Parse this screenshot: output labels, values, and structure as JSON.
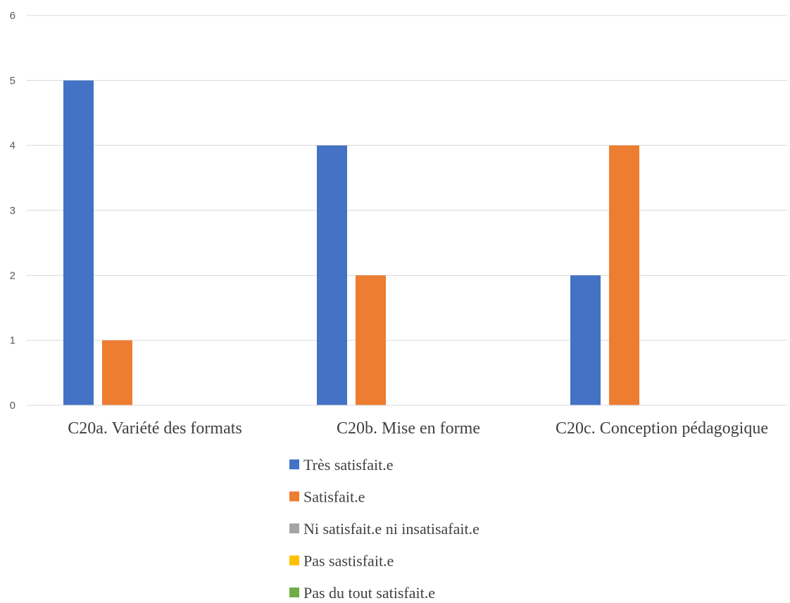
{
  "chart_data": {
    "type": "bar",
    "categories": [
      "C20a. Variété des formats",
      "C20b. Mise en forme",
      "C20c. Conception pédagogique"
    ],
    "series": [
      {
        "name": "Très satisfait.e",
        "color": "#4472C4",
        "values": [
          5,
          4,
          2
        ]
      },
      {
        "name": "Satisfait.e",
        "color": "#ED7D31",
        "values": [
          1,
          2,
          4
        ]
      },
      {
        "name": "Ni satisfait.e ni insatisafait.e",
        "color": "#A5A5A5",
        "values": [
          0,
          0,
          0
        ]
      },
      {
        "name": "Pas sastisfait.e",
        "color": "#FFC000",
        "values": [
          0,
          0,
          0
        ]
      },
      {
        "name": "Pas du tout satisfait.e",
        "color": "#70AD47",
        "values": [
          0,
          0,
          0
        ]
      }
    ],
    "ylim": [
      0,
      6
    ],
    "yticks": [
      "0",
      "1",
      "2",
      "3",
      "4",
      "5",
      "6"
    ],
    "grid": true,
    "legend_position": "bottom"
  }
}
